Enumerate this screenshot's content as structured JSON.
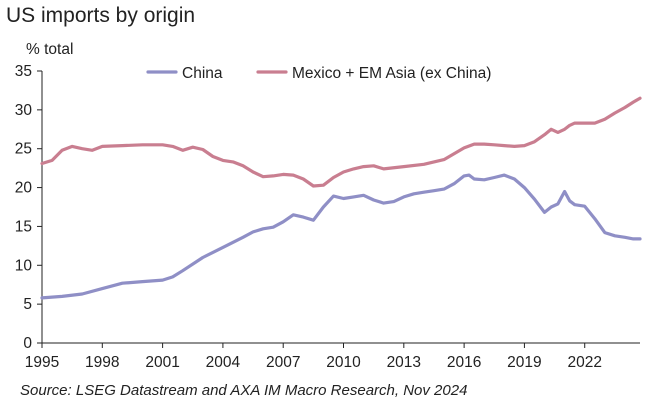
{
  "chart_data": {
    "type": "line",
    "title": "US imports by origin",
    "ylabel": "% total",
    "xlabel": "",
    "source": "Source: LSEG Datastream and AXA IM Macro Research, Nov 2024",
    "ylim": [
      0,
      35
    ],
    "xlim": [
      "1995-01",
      "2024-10"
    ],
    "yticks": [
      "0",
      "5",
      "10",
      "15",
      "20",
      "25",
      "30",
      "35"
    ],
    "xticks": [
      "1995",
      "1998",
      "2001",
      "2004",
      "2007",
      "2010",
      "2013",
      "2016",
      "2019",
      "2022"
    ],
    "grid": false,
    "legend_position": "top",
    "colors": {
      "China": "#8f8fc6",
      "Mexico + EM Asia (ex China)": "#c97e90",
      "axis": "#222222"
    },
    "series": [
      {
        "name": "China",
        "x": [
          "1995-01",
          "1996-01",
          "1997-01",
          "1998-01",
          "1999-01",
          "2000-01",
          "2001-01",
          "2001-07",
          "2002-01",
          "2003-01",
          "2004-01",
          "2005-01",
          "2005-07",
          "2006-01",
          "2006-07",
          "2007-01",
          "2007-07",
          "2008-01",
          "2008-07",
          "2009-01",
          "2009-07",
          "2010-01",
          "2010-07",
          "2011-01",
          "2011-07",
          "2012-01",
          "2012-07",
          "2013-01",
          "2013-07",
          "2014-01",
          "2014-07",
          "2015-01",
          "2015-07",
          "2016-01",
          "2016-04",
          "2016-07",
          "2017-01",
          "2017-07",
          "2018-01",
          "2018-07",
          "2019-01",
          "2019-07",
          "2020-01",
          "2020-05",
          "2020-09",
          "2021-01",
          "2021-04",
          "2021-07",
          "2022-01",
          "2022-07",
          "2023-01",
          "2023-07",
          "2024-01",
          "2024-06",
          "2024-10"
        ],
        "values": [
          5.8,
          6.0,
          6.3,
          7.0,
          7.7,
          7.9,
          8.1,
          8.5,
          9.3,
          11.0,
          12.3,
          13.6,
          14.3,
          14.7,
          14.9,
          15.6,
          16.5,
          16.2,
          15.8,
          17.5,
          18.9,
          18.6,
          18.8,
          19.0,
          18.4,
          18.0,
          18.2,
          18.8,
          19.2,
          19.4,
          19.6,
          19.8,
          20.5,
          21.5,
          21.6,
          21.1,
          21.0,
          21.3,
          21.6,
          21.1,
          20.0,
          18.5,
          16.8,
          17.5,
          17.9,
          19.5,
          18.3,
          17.8,
          17.6,
          16.0,
          14.2,
          13.8,
          13.6,
          13.4,
          13.4
        ]
      },
      {
        "name": "Mexico + EM Asia (ex China)",
        "x": [
          "1995-01",
          "1995-07",
          "1996-01",
          "1996-07",
          "1997-01",
          "1997-07",
          "1998-01",
          "1999-01",
          "2000-01",
          "2001-01",
          "2001-07",
          "2002-01",
          "2002-07",
          "2003-01",
          "2003-07",
          "2004-01",
          "2004-07",
          "2005-01",
          "2005-07",
          "2006-01",
          "2006-07",
          "2007-01",
          "2007-07",
          "2008-01",
          "2008-07",
          "2009-01",
          "2009-07",
          "2010-01",
          "2010-07",
          "2011-01",
          "2011-07",
          "2012-01",
          "2013-01",
          "2014-01",
          "2015-01",
          "2016-01",
          "2016-07",
          "2017-01",
          "2017-07",
          "2018-01",
          "2018-07",
          "2019-01",
          "2019-07",
          "2020-01",
          "2020-05",
          "2020-09",
          "2021-01",
          "2021-04",
          "2021-07",
          "2022-01",
          "2022-07",
          "2023-01",
          "2023-07",
          "2024-01",
          "2024-06",
          "2024-10"
        ],
        "values": [
          23.1,
          23.5,
          24.8,
          25.3,
          25.0,
          24.8,
          25.3,
          25.4,
          25.5,
          25.5,
          25.3,
          24.8,
          25.2,
          24.9,
          24.0,
          23.5,
          23.3,
          22.8,
          22.0,
          21.4,
          21.5,
          21.7,
          21.6,
          21.1,
          20.2,
          20.3,
          21.3,
          22.0,
          22.4,
          22.7,
          22.8,
          22.4,
          22.7,
          23.0,
          23.6,
          25.1,
          25.6,
          25.6,
          25.5,
          25.4,
          25.3,
          25.4,
          25.9,
          26.8,
          27.5,
          27.1,
          27.5,
          28.0,
          28.3,
          28.3,
          28.3,
          28.8,
          29.6,
          30.3,
          31.0,
          31.5
        ]
      }
    ]
  }
}
